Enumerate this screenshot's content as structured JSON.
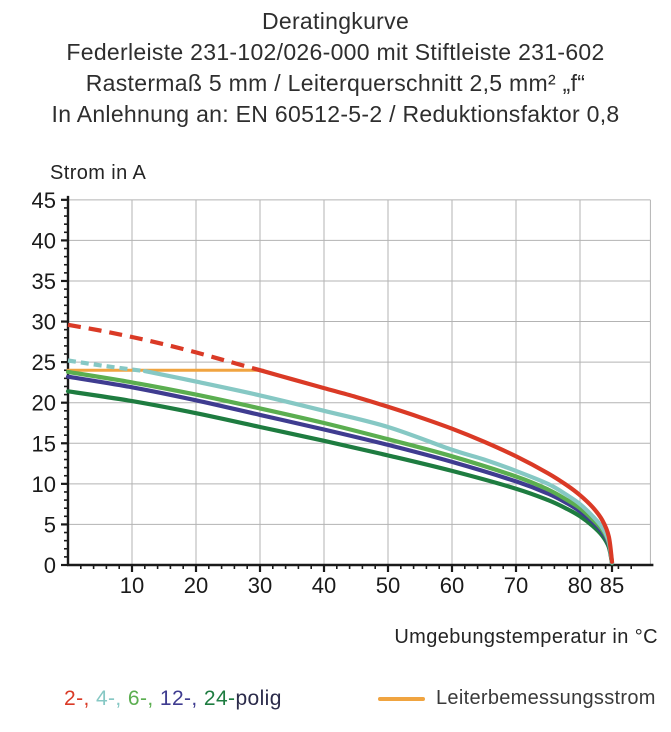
{
  "header": {
    "line1": "Deratingkurve",
    "line2": "Federleiste 231-102/026-000 mit Stiftleiste 231-602",
    "line3": "Rastermaß 5 mm / Leiterquerschnitt 2,5 mm² „f“",
    "line4": "In Anlehnung an: EN 60512-5-2 / Reduktionsfaktor 0,8"
  },
  "chart_data": {
    "type": "line",
    "title": "Deratingkurve",
    "xlabel": "Umgebungstemperatur in °C",
    "ylabel": "Strom in A",
    "xlim": [
      0,
      91
    ],
    "ylim": [
      0,
      45
    ],
    "x_ticks": [
      10,
      20,
      30,
      40,
      50,
      60,
      70,
      80,
      85
    ],
    "x_gridlines": [
      10,
      20,
      30,
      40,
      50,
      60,
      70,
      80,
      91
    ],
    "x_minor_step": 2,
    "y_ticks": [
      0,
      5,
      10,
      15,
      20,
      25,
      30,
      35,
      40,
      45
    ],
    "y_minor_step": 1,
    "grid": true,
    "legend_position": "bottom",
    "grid_color": "#b3b3b3",
    "axis_color": "#1a1a1a",
    "series": [
      {
        "name": "Leiterbemessungsstrom",
        "rated": true,
        "color": "#f0a440",
        "dash_until": null,
        "dash_pattern": null,
        "points": [
          [
            0,
            24
          ],
          [
            30.5,
            24
          ]
        ]
      },
      {
        "name": "24-polig",
        "color": "#1e7c40",
        "dash_until": null,
        "dash_pattern": null,
        "points": [
          [
            0,
            21.4
          ],
          [
            10,
            20.2
          ],
          [
            20,
            18.7
          ],
          [
            30,
            17.0
          ],
          [
            40,
            15.3
          ],
          [
            50,
            13.5
          ],
          [
            60,
            11.6
          ],
          [
            70,
            9.4
          ],
          [
            75,
            8.0
          ],
          [
            78,
            6.9
          ],
          [
            80,
            6.0
          ],
          [
            82,
            4.8
          ],
          [
            83.5,
            3.6
          ],
          [
            84.5,
            2.2
          ],
          [
            85,
            0.2
          ]
        ]
      },
      {
        "name": "12-polig",
        "color": "#3f3c90",
        "dash_until": null,
        "dash_pattern": null,
        "points": [
          [
            0,
            23.2
          ],
          [
            10,
            21.9
          ],
          [
            20,
            20.3
          ],
          [
            30,
            18.5
          ],
          [
            40,
            16.7
          ],
          [
            50,
            14.8
          ],
          [
            60,
            12.7
          ],
          [
            70,
            10.3
          ],
          [
            75,
            8.8
          ],
          [
            78,
            7.6
          ],
          [
            80,
            6.6
          ],
          [
            82,
            5.3
          ],
          [
            83.5,
            4.0
          ],
          [
            84.5,
            2.5
          ],
          [
            85,
            0.3
          ]
        ]
      },
      {
        "name": "6-polig",
        "color": "#5bae50",
        "dash_until": null,
        "dash_pattern": null,
        "points": [
          [
            0,
            23.8
          ],
          [
            10,
            22.5
          ],
          [
            20,
            21.0
          ],
          [
            30,
            19.3
          ],
          [
            40,
            17.5
          ],
          [
            50,
            15.5
          ],
          [
            60,
            13.4
          ],
          [
            70,
            10.9
          ],
          [
            75,
            9.3
          ],
          [
            78,
            8.0
          ],
          [
            80,
            7.0
          ],
          [
            82,
            5.6
          ],
          [
            83.5,
            4.3
          ],
          [
            84.5,
            2.7
          ],
          [
            85,
            0.3
          ]
        ]
      },
      {
        "name": "4-polig",
        "color": "#86c8c4",
        "dash_until": 12,
        "dash_pattern": "8 5",
        "points": [
          [
            0,
            25.2
          ],
          [
            6,
            24.5
          ],
          [
            12,
            23.9
          ],
          [
            20,
            22.6
          ],
          [
            30,
            20.9
          ],
          [
            40,
            19.0
          ],
          [
            50,
            17.0
          ],
          [
            60,
            14.2
          ],
          [
            65,
            13.0
          ],
          [
            70,
            11.6
          ],
          [
            75,
            10.0
          ],
          [
            78,
            8.6
          ],
          [
            80,
            7.5
          ],
          [
            82,
            6.0
          ],
          [
            83.5,
            4.6
          ],
          [
            84.5,
            2.9
          ],
          [
            85,
            0.3
          ]
        ]
      },
      {
        "name": "2-polig",
        "color": "#da3a26",
        "dash_until": 30,
        "dash_pattern": "13 8",
        "points": [
          [
            0,
            29.6
          ],
          [
            5,
            28.9
          ],
          [
            10,
            28.1
          ],
          [
            15,
            27.2
          ],
          [
            20,
            26.2
          ],
          [
            25,
            25.1
          ],
          [
            30,
            24.0
          ],
          [
            35,
            22.9
          ],
          [
            40,
            21.8
          ],
          [
            45,
            20.7
          ],
          [
            50,
            19.5
          ],
          [
            55,
            18.2
          ],
          [
            60,
            16.8
          ],
          [
            65,
            15.2
          ],
          [
            70,
            13.4
          ],
          [
            75,
            11.3
          ],
          [
            78,
            9.8
          ],
          [
            80,
            8.6
          ],
          [
            82,
            7.1
          ],
          [
            83.5,
            5.5
          ],
          [
            84.5,
            3.5
          ],
          [
            85,
            0.4
          ]
        ]
      }
    ]
  },
  "legend": {
    "pole_entries": [
      {
        "label": "2-,",
        "color": "#da3a26"
      },
      {
        "label": "4-,",
        "color": "#86c8c4"
      },
      {
        "label": "6-,",
        "color": "#5bae50"
      },
      {
        "label": "12-,",
        "color": "#3f3c90"
      },
      {
        "label": "24-",
        "color": "#1e7c40"
      }
    ],
    "suffix": "polig",
    "rated_label": "Leiterbemessungsstrom",
    "rated_color": "#f0a440"
  }
}
